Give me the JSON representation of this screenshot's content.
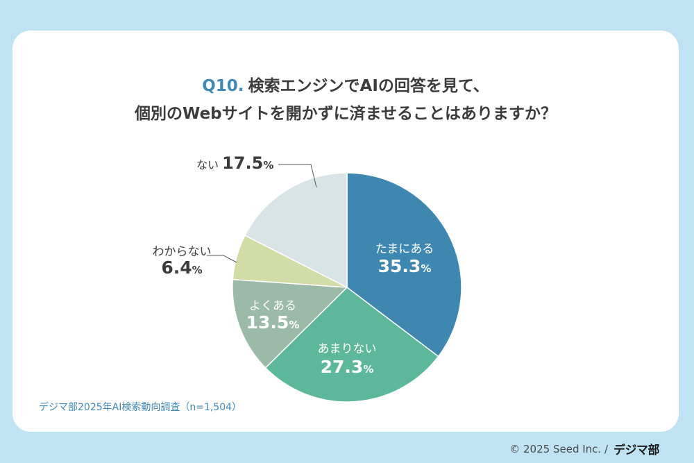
{
  "title": {
    "q_number": "Q10.",
    "line1": "検索エンジンでAIの回答を見て、",
    "line2": "個別のWebサイトを開かずに済ませることはありますか？"
  },
  "source_note": "デジマ部2025年AI検索動向調査（n=1,504）",
  "copyright": {
    "text": "© 2025 Seed Inc. /",
    "logo": "デジマ部"
  },
  "chart_data": {
    "type": "pie",
    "start": "12 o'clock, clockwise",
    "slices": [
      {
        "label": "たまにある",
        "value": 35.3,
        "value_text": "35.3",
        "unit": "%",
        "color": "#3e87b1",
        "label_color": "#ffffff",
        "label_position": "inside"
      },
      {
        "label": "あまりない",
        "value": 27.3,
        "value_text": "27.3",
        "unit": "%",
        "color": "#5db89b",
        "label_color": "#ffffff",
        "label_position": "inside"
      },
      {
        "label": "よくある",
        "value": 13.5,
        "value_text": "13.5",
        "unit": "%",
        "color": "#9cbaa8",
        "label_color": "#ffffff",
        "label_position": "inside"
      },
      {
        "label": "わからない",
        "value": 6.4,
        "value_text": "6.4",
        "unit": "%",
        "color": "#d1dca6",
        "label_color": "#3c3c3c",
        "label_position": "outside"
      },
      {
        "label": "ない",
        "value": 17.5,
        "value_text": "17.5",
        "unit": "%",
        "color": "#d9e4e6",
        "label_color": "#3c3c3c",
        "label_position": "outside"
      }
    ]
  }
}
